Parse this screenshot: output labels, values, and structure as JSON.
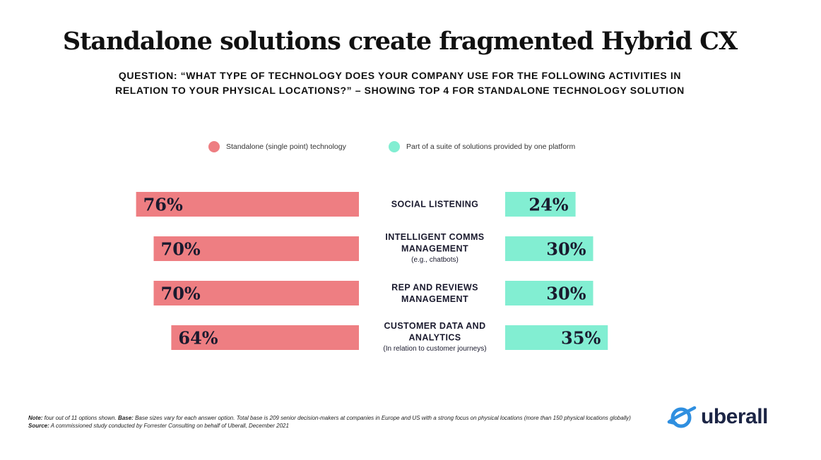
{
  "title": "Standalone solutions create fragmented Hybrid CX",
  "question_line1": "QUESTION: “WHAT TYPE OF TECHNOLOGY DOES YOUR COMPANY USE FOR THE FOLLOWING ACTIVITIES IN",
  "question_line2": "RELATION TO YOUR PHYSICAL LOCATIONS?” – SHOWING TOP 4 FOR STANDALONE TECHNOLOGY SOLUTION",
  "legend": {
    "standalone": "Standalone (single point) technology",
    "suite": "Part of a suite of solutions provided by one platform"
  },
  "colors": {
    "standalone": "#ee7e82",
    "suite": "#82eed2",
    "text": "#111111"
  },
  "chart_data": {
    "type": "bar",
    "orientation": "horizontal-diverging",
    "unit": "%",
    "categories": [
      {
        "lines": [
          "SOCIAL LISTENING"
        ],
        "sub": ""
      },
      {
        "lines": [
          "INTELLIGENT COMMS",
          "MANAGEMENT"
        ],
        "sub": "(e.g., chatbots)"
      },
      {
        "lines": [
          "REP AND REVIEWS",
          "MANAGEMENT"
        ],
        "sub": ""
      },
      {
        "lines": [
          "CUSTOMER DATA AND",
          "ANALYTICS"
        ],
        "sub": "(In relation to customer journeys)"
      }
    ],
    "series": [
      {
        "name": "Standalone (single point) technology",
        "values": [
          76,
          70,
          70,
          64
        ],
        "labels": [
          "76%",
          "70%",
          "70%",
          "64%"
        ]
      },
      {
        "name": "Part of a suite of solutions provided by one platform",
        "values": [
          24,
          30,
          30,
          35
        ],
        "labels": [
          "24%",
          "30%",
          "30%",
          "35%"
        ]
      }
    ]
  },
  "note": {
    "note_label": "Note:",
    "note_text": " four out of 11 options shown. ",
    "base_label": "Base:",
    "base_text": " Base sizes vary for each answer option. Total base is 209 senior decision-makers at companies in Europe and US with a strong focus on physical locations (more than 150 physical locations globally) ",
    "source_label": "Source:",
    "source_text": " A commissioned study conducted by Forrester Consulting on behalf of Uberall, December 2021"
  },
  "logo": {
    "text": "uberall",
    "icon": "planet-logo-icon"
  }
}
